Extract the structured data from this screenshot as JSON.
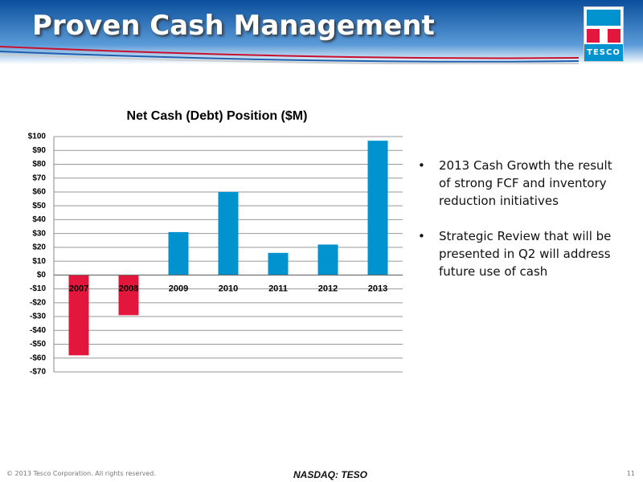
{
  "header": {
    "title": "Proven Cash Management",
    "logo": "TESCO"
  },
  "chart_data": {
    "type": "bar",
    "title": "Net Cash (Debt) Position ($M)",
    "categories": [
      "2007",
      "2008",
      "2009",
      "2010",
      "2011",
      "2012",
      "2013"
    ],
    "values": [
      -58,
      -29,
      31,
      60,
      16,
      22,
      97
    ],
    "colors": [
      "#e3173e",
      "#e3173e",
      "#0093d0",
      "#0093d0",
      "#0093d0",
      "#0093d0",
      "#0093d0"
    ],
    "ylim": [
      -70,
      100
    ],
    "yticks": [
      {
        "value": -70,
        "label": "-$70"
      },
      {
        "value": -60,
        "label": "-$60"
      },
      {
        "value": -50,
        "label": "-$50"
      },
      {
        "value": -40,
        "label": "-$40"
      },
      {
        "value": -30,
        "label": "-$30"
      },
      {
        "value": -20,
        "label": "-$20"
      },
      {
        "value": -10,
        "label": "-$10"
      },
      {
        "value": 0,
        "label": "$0"
      },
      {
        "value": 10,
        "label": "$10"
      },
      {
        "value": 20,
        "label": "$20"
      },
      {
        "value": 30,
        "label": "$30"
      },
      {
        "value": 40,
        "label": "$40"
      },
      {
        "value": 50,
        "label": "$50"
      },
      {
        "value": 60,
        "label": "$60"
      },
      {
        "value": 70,
        "label": "$70"
      },
      {
        "value": 80,
        "label": "$80"
      },
      {
        "value": 90,
        "label": "$90"
      },
      {
        "value": 100,
        "label": "$100"
      }
    ],
    "grid": true
  },
  "bullets": [
    "2013 Cash Growth the result of strong FCF and inventory reduction initiatives",
    "Strategic Review that will be presented in Q2 will address future use of cash"
  ],
  "footer": {
    "copyright": "© 2013 Tesco Corporation. All rights reserved.",
    "ticker": "NASDAQ: TESO",
    "page": "11"
  }
}
